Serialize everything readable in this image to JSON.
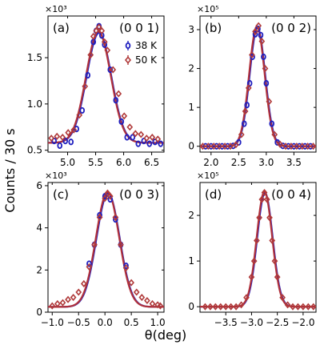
{
  "figure": {
    "ylabel": "Counts / 30 s",
    "xlabel": "θ(deg)"
  },
  "colors": {
    "blue": "#1f1fbf",
    "red": "#b03a3a",
    "fit": "#b0303a"
  },
  "legend": [
    {
      "label": "38 K",
      "marker": "circle",
      "color": "#1f1fbf"
    },
    {
      "label": "50 K",
      "marker": "diamond",
      "color": "#b03a3a"
    }
  ],
  "chart_data": [
    {
      "type": "scatter",
      "panel_label": "(a)",
      "reflection": "(0 0 1)",
      "multiplier": "×10³",
      "x_ticks": [
        5.0,
        5.5,
        6.0,
        6.5
      ],
      "x_tick_labels": [
        "5.0",
        "5.5",
        "6.0",
        "6.5"
      ],
      "y_ticks": [
        0.5,
        1.0,
        1.5
      ],
      "y_tick_labels": [
        "0.5",
        "1.0",
        "1.5"
      ],
      "xlim": [
        4.65,
        6.72
      ],
      "ylim": [
        0.48,
        1.95
      ],
      "peak": {
        "center": 5.55,
        "amplitude": 1.2,
        "width": 0.22,
        "background": 0.58
      },
      "series": [
        {
          "name": "38 K",
          "x": [
            4.76,
            4.86,
            4.96,
            5.06,
            5.16,
            5.26,
            5.36,
            5.46,
            5.51,
            5.56,
            5.61,
            5.66,
            5.76,
            5.86,
            5.96,
            6.06,
            6.16,
            6.26,
            6.36,
            6.46,
            6.56,
            6.66
          ],
          "y": [
            0.6,
            0.55,
            0.6,
            0.59,
            0.73,
            0.93,
            1.31,
            1.67,
            1.79,
            1.84,
            1.74,
            1.64,
            1.37,
            1.04,
            0.81,
            0.64,
            0.64,
            0.57,
            0.6,
            0.57,
            0.59,
            0.57
          ]
        },
        {
          "name": "50 K",
          "x": [
            4.71,
            4.81,
            4.91,
            5.01,
            5.11,
            5.21,
            5.31,
            5.41,
            5.46,
            5.51,
            5.56,
            5.61,
            5.66,
            5.71,
            5.81,
            5.91,
            6.01,
            6.11,
            6.21,
            6.31,
            6.41,
            6.51,
            6.61
          ],
          "y": [
            0.63,
            0.65,
            0.64,
            0.69,
            0.72,
            0.88,
            1.19,
            1.53,
            1.73,
            1.79,
            1.83,
            1.79,
            1.67,
            1.58,
            1.37,
            1.11,
            0.87,
            0.75,
            0.68,
            0.67,
            0.63,
            0.64,
            0.62
          ]
        }
      ]
    },
    {
      "type": "scatter",
      "panel_label": "(b)",
      "reflection": "(0 0 2)",
      "multiplier": "×10⁵",
      "x_ticks": [
        2.0,
        2.5,
        3.0,
        3.5
      ],
      "x_tick_labels": [
        "2.0",
        "2.5",
        "3.0",
        "3.5"
      ],
      "y_ticks": [
        0,
        1,
        2,
        3
      ],
      "y_tick_labels": [
        "0",
        "1",
        "2",
        "3"
      ],
      "xlim": [
        1.8,
        3.9
      ],
      "ylim": [
        -0.15,
        3.35
      ],
      "peak": {
        "center": 2.83,
        "amplitude": 3.08,
        "width": 0.14,
        "background": 0
      },
      "series": [
        {
          "name": "38 K",
          "x": [
            1.9,
            2.0,
            2.1,
            2.2,
            2.3,
            2.4,
            2.5,
            2.6,
            2.65,
            2.7,
            2.75,
            2.8,
            2.85,
            2.9,
            2.95,
            3.0,
            3.1,
            3.2,
            3.3,
            3.4,
            3.5,
            3.6,
            3.7,
            3.8
          ],
          "y": [
            0,
            0,
            0,
            0,
            0,
            0.01,
            0.1,
            0.58,
            1.06,
            1.62,
            2.3,
            2.88,
            3.02,
            2.86,
            2.3,
            1.62,
            0.58,
            0.1,
            0.01,
            0,
            0,
            0,
            0,
            0
          ]
        },
        {
          "name": "50 K",
          "x": [
            1.85,
            1.95,
            2.05,
            2.15,
            2.25,
            2.35,
            2.45,
            2.55,
            2.62,
            2.68,
            2.74,
            2.8,
            2.86,
            2.92,
            2.98,
            3.05,
            3.15,
            3.25,
            3.35,
            3.45,
            3.55,
            3.65,
            3.75,
            3.85
          ],
          "y": [
            0,
            0,
            0,
            0,
            0,
            0,
            0.04,
            0.3,
            0.9,
            1.5,
            2.35,
            2.95,
            3.1,
            2.7,
            2.0,
            1.15,
            0.3,
            0.05,
            0,
            0,
            0,
            0,
            0,
            0
          ]
        }
      ]
    },
    {
      "type": "scatter",
      "panel_label": "(c)",
      "reflection": "(0 0 3)",
      "multiplier": "×10³",
      "x_ticks": [
        -1.0,
        -0.5,
        0.0,
        0.5,
        1.0
      ],
      "x_tick_labels": [
        "−1.0",
        "−0.5",
        "0.0",
        "0.5",
        "1.0"
      ],
      "y_ticks": [
        0,
        2,
        4,
        6
      ],
      "y_tick_labels": [
        "0",
        "2",
        "4",
        "6"
      ],
      "xlim": [
        -1.08,
        1.12
      ],
      "ylim": [
        0,
        6.15
      ],
      "peak": {
        "center": 0.05,
        "amplitude": 5.45,
        "width": 0.22,
        "background": 0.25
      },
      "series": [
        {
          "name": "38 K",
          "x": [
            -0.3,
            -0.2,
            -0.1,
            0.0,
            0.1,
            0.2,
            0.3,
            0.4
          ],
          "y": [
            2.3,
            3.2,
            4.6,
            5.5,
            5.35,
            4.4,
            3.2,
            2.2
          ]
        },
        {
          "name": "50 K",
          "x": [
            -1.0,
            -0.9,
            -0.8,
            -0.7,
            -0.6,
            -0.5,
            -0.4,
            -0.3,
            -0.2,
            -0.1,
            0.0,
            0.05,
            0.1,
            0.2,
            0.3,
            0.4,
            0.5,
            0.6,
            0.7,
            0.8,
            0.9,
            1.0,
            1.05
          ],
          "y": [
            0.3,
            0.4,
            0.45,
            0.6,
            0.7,
            0.95,
            1.35,
            2.15,
            3.2,
            4.5,
            5.4,
            5.65,
            5.5,
            4.5,
            3.2,
            2.1,
            1.4,
            0.95,
            0.7,
            0.55,
            0.4,
            0.35,
            0.3
          ]
        }
      ]
    },
    {
      "type": "scatter",
      "panel_label": "(d)",
      "reflection": "(0 0 4)",
      "multiplier": "×10⁵",
      "x_ticks": [
        -3.5,
        -3.0,
        -2.5,
        -2.0
      ],
      "x_tick_labels": [
        "−3.5",
        "−3.0",
        "−2.5",
        "−2.0"
      ],
      "y_ticks": [
        0,
        1,
        2
      ],
      "y_tick_labels": [
        "0",
        "1",
        "2"
      ],
      "xlim": [
        -4.0,
        -1.75
      ],
      "ylim": [
        -0.12,
        2.72
      ],
      "peak": {
        "center": -2.75,
        "amplitude": 2.52,
        "width": 0.15,
        "background": 0
      },
      "series": [
        {
          "name": "50 K",
          "x": [
            -3.9,
            -3.8,
            -3.7,
            -3.6,
            -3.5,
            -3.4,
            -3.3,
            -3.2,
            -3.1,
            -3.0,
            -2.95,
            -2.9,
            -2.85,
            -2.8,
            -2.75,
            -2.7,
            -2.65,
            -2.6,
            -2.55,
            -2.5,
            -2.4,
            -2.3,
            -2.2,
            -2.1,
            -2.0,
            -1.9,
            -1.8
          ],
          "y": [
            0,
            0,
            0,
            0,
            0,
            0,
            0,
            0.04,
            0.2,
            0.65,
            1.0,
            1.45,
            1.95,
            2.35,
            2.5,
            2.35,
            1.95,
            1.45,
            1.0,
            0.65,
            0.2,
            0.04,
            0,
            0,
            0,
            0,
            0
          ]
        }
      ]
    }
  ]
}
